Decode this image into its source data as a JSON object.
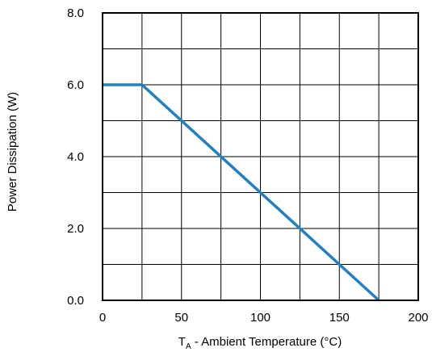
{
  "chart_data": {
    "type": "line",
    "x": [
      0,
      25,
      175
    ],
    "series": [
      {
        "values": [
          6.0,
          6.0,
          0.0
        ],
        "color": "#1f80c4"
      }
    ],
    "xlabel": {
      "symbol": "T",
      "subscript": "A",
      "text": " - Ambient Temperature (°C)"
    },
    "ylabel": "Power Dissipation (W)",
    "xlim": [
      0,
      200
    ],
    "ylim": [
      0,
      8
    ],
    "x_ticks": [
      0,
      50,
      100,
      150,
      200
    ],
    "x_tick_labels": [
      "0",
      "50",
      "100",
      "150",
      "200"
    ],
    "y_ticks": [
      0,
      2,
      4,
      6,
      8
    ],
    "y_tick_labels": [
      "0.0",
      "2.0",
      "4.0",
      "6.0",
      "8.0"
    ],
    "x_grid_step": 25,
    "y_grid_step": 1,
    "grid": true,
    "legend": "none"
  }
}
